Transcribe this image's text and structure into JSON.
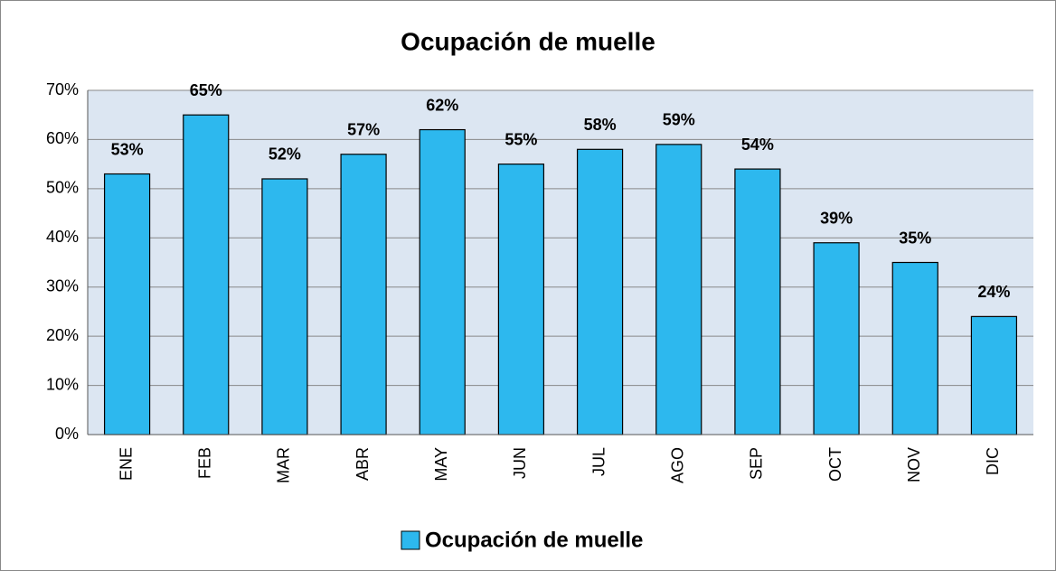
{
  "chart_data": {
    "type": "bar",
    "title": "Ocupación de muelle",
    "categories": [
      "ENE",
      "FEB",
      "MAR",
      "ABR",
      "MAY",
      "JUN",
      "JUL",
      "AGO",
      "SEP",
      "OCT",
      "NOV",
      "DIC"
    ],
    "series": [
      {
        "name": "Ocupación de muelle",
        "color": "#2db8ee",
        "values": [
          53,
          65,
          52,
          57,
          62,
          55,
          58,
          59,
          54,
          39,
          35,
          24
        ],
        "value_labels": [
          "53%",
          "65%",
          "52%",
          "57%",
          "62%",
          "55%",
          "58%",
          "59%",
          "54%",
          "39%",
          "35%",
          "24%"
        ]
      }
    ],
    "ylim": [
      0,
      70
    ],
    "yticks": [
      {
        "value": 0,
        "label": "0%"
      },
      {
        "value": 10,
        "label": "10%"
      },
      {
        "value": 20,
        "label": "20%"
      },
      {
        "value": 30,
        "label": "30%"
      },
      {
        "value": 40,
        "label": "40%"
      },
      {
        "value": 50,
        "label": "50%"
      },
      {
        "value": 60,
        "label": "60%"
      },
      {
        "value": 70,
        "label": "70%"
      }
    ],
    "grid": true,
    "legend": "bottom"
  }
}
